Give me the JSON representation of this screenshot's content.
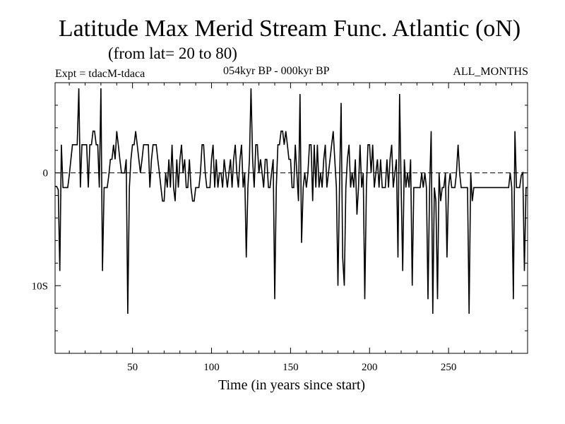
{
  "chart_data": {
    "type": "line",
    "title": "Latitude Max Merid Stream Func. Atlantic (oN)",
    "subtitle": "(from lat= 20 to 80)",
    "experiment_label": "Expt = tdacM-tdaca",
    "period_label": "054kyr BP - 000kyr BP",
    "months_label": "ALL_MONTHS",
    "xlabel": "Time (in years since start)",
    "ylabel": "",
    "xlim": [
      1,
      300
    ],
    "ylim": [
      -16,
      8
    ],
    "x_ticks": [
      50,
      100,
      150,
      200,
      250
    ],
    "x_tick_labels": [
      "50",
      "100",
      "150",
      "200",
      "250"
    ],
    "y_ticks": [
      0,
      -10
    ],
    "y_tick_labels": [
      "0",
      "10S"
    ],
    "zero_line": "dashed",
    "series": [
      {
        "name": "tdacM-tdaca",
        "color": "#000000",
        "points": [
          [
            1,
            -1.2
          ],
          [
            2,
            -1.2
          ],
          [
            3,
            -1.5
          ],
          [
            4,
            -8.7
          ],
          [
            5,
            2.5
          ],
          [
            6,
            -1.3
          ],
          [
            7,
            -1.3
          ],
          [
            8,
            -1.3
          ],
          [
            9,
            -1.3
          ],
          [
            10,
            -0.2
          ],
          [
            11,
            1.2
          ],
          [
            12,
            2.5
          ],
          [
            13,
            2.5
          ],
          [
            14,
            2.5
          ],
          [
            15,
            2.5
          ],
          [
            16,
            7.5
          ],
          [
            17,
            -1.3
          ],
          [
            18,
            2.5
          ],
          [
            19,
            2.5
          ],
          [
            20,
            2.5
          ],
          [
            21,
            2.5
          ],
          [
            22,
            -1.3
          ],
          [
            23,
            2.5
          ],
          [
            24,
            2.5
          ],
          [
            25,
            3.7
          ],
          [
            26,
            3.7
          ],
          [
            27,
            2.5
          ],
          [
            28,
            2.5
          ],
          [
            29,
            -1.3
          ],
          [
            30,
            7.5
          ],
          [
            31,
            -8.7
          ],
          [
            32,
            -1.3
          ],
          [
            33,
            -1.3
          ],
          [
            34,
            -1.3
          ],
          [
            35,
            -0.2
          ],
          [
            36,
            1.2
          ],
          [
            37,
            1.2
          ],
          [
            38,
            2.5
          ],
          [
            39,
            1.2
          ],
          [
            40,
            3.7
          ],
          [
            41,
            2.5
          ],
          [
            42,
            1.2
          ],
          [
            43,
            0.0
          ],
          [
            44,
            0.0
          ],
          [
            45,
            0.0
          ],
          [
            46,
            1.2
          ],
          [
            47,
            -12.5
          ],
          [
            48,
            -1.3
          ],
          [
            49,
            1.2
          ],
          [
            50,
            2.5
          ],
          [
            51,
            2.5
          ],
          [
            52,
            3.7
          ],
          [
            53,
            2.5
          ],
          [
            54,
            1.2
          ],
          [
            55,
            0.0
          ],
          [
            56,
            1.2
          ],
          [
            57,
            2.5
          ],
          [
            58,
            2.5
          ],
          [
            59,
            2.5
          ],
          [
            60,
            2.5
          ],
          [
            61,
            -1.3
          ],
          [
            62,
            1.2
          ],
          [
            63,
            2.5
          ],
          [
            64,
            2.5
          ],
          [
            65,
            2.5
          ],
          [
            66,
            1.2
          ],
          [
            67,
            0.0
          ],
          [
            68,
            -1.3
          ],
          [
            69,
            -2.5
          ],
          [
            70,
            -2.5
          ],
          [
            71,
            0.0
          ],
          [
            72,
            -1.3
          ],
          [
            73,
            1.2
          ],
          [
            74,
            -1.3
          ],
          [
            75,
            2.5
          ],
          [
            76,
            -1.3
          ],
          [
            77,
            -2.5
          ],
          [
            78,
            1.2
          ],
          [
            79,
            -1.3
          ],
          [
            80,
            1.2
          ],
          [
            81,
            2.5
          ],
          [
            82,
            0.0
          ],
          [
            83,
            1.2
          ],
          [
            84,
            -1.3
          ],
          [
            85,
            -1.3
          ],
          [
            86,
            1.2
          ],
          [
            87,
            -1.3
          ],
          [
            88,
            -2.5
          ],
          [
            89,
            -2.5
          ],
          [
            90,
            -1.3
          ],
          [
            91,
            -1.3
          ],
          [
            92,
            -1.3
          ],
          [
            93,
            0.0
          ],
          [
            94,
            2.5
          ],
          [
            95,
            2.5
          ],
          [
            96,
            0.0
          ],
          [
            97,
            -1.3
          ],
          [
            98,
            -1.3
          ],
          [
            99,
            -1.3
          ],
          [
            100,
            1.2
          ],
          [
            101,
            2.5
          ],
          [
            102,
            -1.3
          ],
          [
            103,
            1.2
          ],
          [
            104,
            -1.3
          ],
          [
            105,
            0.0
          ],
          [
            106,
            0.0
          ],
          [
            107,
            -1.3
          ],
          [
            108,
            1.2
          ],
          [
            109,
            0.0
          ],
          [
            110,
            -1.3
          ],
          [
            111,
            0.0
          ],
          [
            112,
            1.2
          ],
          [
            113,
            -1.3
          ],
          [
            114,
            1.2
          ],
          [
            115,
            2.5
          ],
          [
            116,
            0.0
          ],
          [
            117,
            -1.3
          ],
          [
            118,
            1.2
          ],
          [
            119,
            2.5
          ],
          [
            120,
            -1.3
          ],
          [
            121,
            0.0
          ],
          [
            122,
            -7.5
          ],
          [
            123,
            -1.3
          ],
          [
            124,
            1.2
          ],
          [
            125,
            7.5
          ],
          [
            126,
            1.2
          ],
          [
            127,
            -1.3
          ],
          [
            128,
            2.5
          ],
          [
            129,
            2.5
          ],
          [
            130,
            0.0
          ],
          [
            131,
            1.2
          ],
          [
            132,
            0.0
          ],
          [
            133,
            -1.3
          ],
          [
            134,
            1.2
          ],
          [
            135,
            1.2
          ],
          [
            136,
            -1.3
          ],
          [
            137,
            -1.3
          ],
          [
            138,
            0.0
          ],
          [
            139,
            1.2
          ],
          [
            140,
            -11.2
          ],
          [
            141,
            -1.3
          ],
          [
            142,
            2.5
          ],
          [
            143,
            2.5
          ],
          [
            144,
            3.7
          ],
          [
            145,
            3.7
          ],
          [
            146,
            2.5
          ],
          [
            147,
            3.7
          ],
          [
            148,
            2.5
          ],
          [
            149,
            1.2
          ],
          [
            150,
            1.2
          ],
          [
            151,
            -1.3
          ],
          [
            152,
            -1.3
          ],
          [
            153,
            2.5
          ],
          [
            154,
            0.0
          ],
          [
            155,
            -2.5
          ],
          [
            156,
            7.0
          ],
          [
            157,
            -6.2
          ],
          [
            158,
            -1.3
          ],
          [
            159,
            0.0
          ],
          [
            160,
            -1.3
          ],
          [
            161,
            0.0
          ],
          [
            162,
            2.5
          ],
          [
            163,
            2.5
          ],
          [
            164,
            -2.5
          ],
          [
            165,
            2.5
          ],
          [
            166,
            -1.3
          ],
          [
            167,
            2.5
          ],
          [
            168,
            -1.3
          ],
          [
            169,
            0.0
          ],
          [
            170,
            -1.3
          ],
          [
            171,
            1.2
          ],
          [
            172,
            2.5
          ],
          [
            173,
            -1.3
          ],
          [
            174,
            0.0
          ],
          [
            175,
            1.2
          ],
          [
            176,
            2.5
          ],
          [
            177,
            3.7
          ],
          [
            178,
            1.2
          ],
          [
            179,
            -1.3
          ],
          [
            180,
            -10.0
          ],
          [
            181,
            -1.3
          ],
          [
            182,
            6.2
          ],
          [
            183,
            -7.5
          ],
          [
            184,
            -10.0
          ],
          [
            185,
            -1.3
          ],
          [
            186,
            1.2
          ],
          [
            187,
            2.5
          ],
          [
            188,
            -1.3
          ],
          [
            189,
            0.0
          ],
          [
            190,
            -1.3
          ],
          [
            191,
            1.2
          ],
          [
            192,
            -3.7
          ],
          [
            193,
            -1.3
          ],
          [
            194,
            2.5
          ],
          [
            195,
            -1.3
          ],
          [
            196,
            0.0
          ],
          [
            197,
            -11.2
          ],
          [
            198,
            -1.3
          ],
          [
            199,
            2.5
          ],
          [
            200,
            2.5
          ],
          [
            201,
            0.0
          ],
          [
            202,
            2.5
          ],
          [
            203,
            -1.3
          ],
          [
            204,
            0.0
          ],
          [
            205,
            1.2
          ],
          [
            206,
            -1.3
          ],
          [
            207,
            1.2
          ],
          [
            208,
            -1.3
          ],
          [
            209,
            -1.3
          ],
          [
            210,
            -1.3
          ],
          [
            211,
            1.2
          ],
          [
            212,
            -1.3
          ],
          [
            213,
            1.2
          ],
          [
            214,
            2.5
          ],
          [
            215,
            -1.3
          ],
          [
            216,
            0.0
          ],
          [
            217,
            1.2
          ],
          [
            218,
            -7.5
          ],
          [
            219,
            7.0
          ],
          [
            220,
            -1.3
          ],
          [
            221,
            -8.7
          ],
          [
            222,
            1.2
          ],
          [
            223,
            -1.3
          ],
          [
            224,
            0.0
          ],
          [
            225,
            -1.3
          ],
          [
            226,
            1.2
          ],
          [
            227,
            -10.0
          ],
          [
            228,
            -1.3
          ],
          [
            229,
            -1.3
          ],
          [
            230,
            -1.3
          ],
          [
            231,
            -1.3
          ],
          [
            232,
            -1.3
          ],
          [
            233,
            0.0
          ],
          [
            234,
            -1.3
          ],
          [
            235,
            0.0
          ],
          [
            236,
            -1.3
          ],
          [
            237,
            -11.2
          ],
          [
            238,
            -1.3
          ],
          [
            239,
            3.7
          ],
          [
            240,
            -12.5
          ],
          [
            241,
            -1.3
          ],
          [
            242,
            -2.5
          ],
          [
            243,
            -11.2
          ],
          [
            244,
            0.0
          ],
          [
            245,
            -2.5
          ],
          [
            246,
            -1.3
          ],
          [
            247,
            -1.3
          ],
          [
            248,
            0.0
          ],
          [
            249,
            -7.5
          ],
          [
            250,
            -1.3
          ],
          [
            251,
            0.0
          ],
          [
            252,
            -1.3
          ],
          [
            253,
            -1.3
          ],
          [
            254,
            -1.3
          ],
          [
            255,
            0.0
          ],
          [
            256,
            2.5
          ],
          [
            257,
            0.0
          ],
          [
            258,
            -1.3
          ],
          [
            259,
            -1.3
          ],
          [
            260,
            -1.3
          ],
          [
            261,
            -1.3
          ],
          [
            262,
            -1.3
          ],
          [
            263,
            -12.5
          ],
          [
            264,
            0.0
          ],
          [
            265,
            -2.5
          ],
          [
            266,
            -1.3
          ],
          [
            267,
            -1.3
          ],
          [
            268,
            -1.3
          ],
          [
            269,
            -1.3
          ],
          [
            270,
            -1.3
          ],
          [
            271,
            -1.3
          ],
          [
            272,
            -1.3
          ],
          [
            273,
            -1.3
          ],
          [
            274,
            -1.3
          ],
          [
            275,
            -1.3
          ],
          [
            276,
            -1.3
          ],
          [
            277,
            -1.3
          ],
          [
            278,
            -1.3
          ],
          [
            279,
            -1.3
          ],
          [
            280,
            -1.3
          ],
          [
            281,
            -1.3
          ],
          [
            282,
            -1.3
          ],
          [
            283,
            -1.3
          ],
          [
            284,
            -1.3
          ],
          [
            285,
            -1.3
          ],
          [
            286,
            -1.3
          ],
          [
            287,
            -1.3
          ],
          [
            288,
            -1.3
          ],
          [
            289,
            0.0
          ],
          [
            290,
            -1.3
          ],
          [
            291,
            -11.2
          ],
          [
            292,
            3.7
          ],
          [
            293,
            -1.3
          ],
          [
            294,
            -1.3
          ],
          [
            295,
            -1.3
          ],
          [
            296,
            -0.2
          ],
          [
            297,
            0.0
          ],
          [
            298,
            -8.7
          ],
          [
            299,
            -1.3
          ],
          [
            300,
            -1.3
          ]
        ]
      }
    ]
  }
}
